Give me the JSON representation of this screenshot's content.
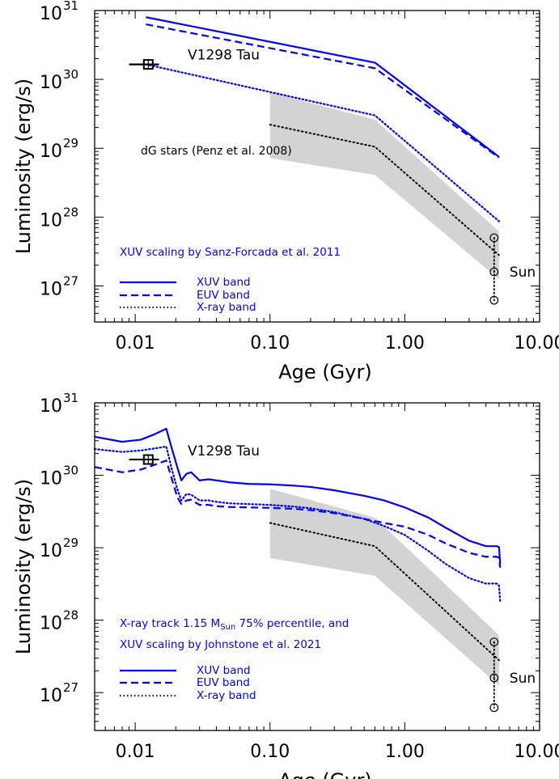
{
  "chart_data": [
    {
      "type": "line",
      "xlabel": "Age (Gyr)",
      "ylabel": "Luminosity (erg/s)",
      "xscale": "log",
      "yscale": "log",
      "xlim": [
        0.005,
        10.0
      ],
      "ylim": [
        3e+26,
        1e+31
      ],
      "xticks": [
        "0.01",
        "0.10",
        "1.00",
        "10.00"
      ],
      "xtick_values": [
        0.01,
        0.1,
        1.0,
        10.0
      ],
      "ytick_values": [
        1e+27,
        1e+28,
        1e+29,
        1e+30,
        1e+31
      ],
      "ytick_exponents": [
        "27",
        "28",
        "29",
        "30",
        "31"
      ],
      "ytick_base": "10",
      "annotations": {
        "scaling": "XUV scaling by Sanz-Forcada et al. 2011",
        "dg_stars": "dG stars (Penz et al. 2008)",
        "star": "V1298 Tau",
        "sun": "Sun"
      },
      "legend": [
        "XUV band",
        "EUV band",
        "X-ray band"
      ],
      "series": [
        {
          "name": "XUV band",
          "style": "solid",
          "color": "#0000ff",
          "x": [
            0.012,
            0.6,
            5.0
          ],
          "y": [
            8e+30,
            1.75e+30,
            7.5e+28
          ]
        },
        {
          "name": "EUV band",
          "style": "dashed",
          "color": "#0000ff",
          "x": [
            0.012,
            0.6,
            5.0
          ],
          "y": [
            6.3e+30,
            1.45e+30,
            7.3e+28
          ]
        },
        {
          "name": "X-ray band",
          "style": "dotted",
          "color": "#0000ff",
          "x": [
            0.012,
            0.6,
            5.0
          ],
          "y": [
            1.65e+30,
            3e+29,
            8.7e+27
          ]
        }
      ],
      "dg_stars": {
        "median": {
          "x": [
            0.1,
            0.6,
            5.0
          ],
          "y": [
            2.2e+29,
            1.05e+29,
            2.8e+27
          ]
        },
        "band": {
          "x": [
            0.1,
            0.6,
            5.0
          ],
          "upper": [
            6.5e+29,
            2.6e+29,
            6.2e+27
          ],
          "lower": [
            7.2e+28,
            4.1e+28,
            1.25e+27
          ]
        },
        "band_color": "#d3d3d3"
      },
      "v1298": {
        "x": 0.0125,
        "y": 1.65e+30,
        "x_err": [
          0.009,
          0.015
        ]
      },
      "sun": {
        "x": 4.6,
        "points": [
          5e+27,
          1.6e+27,
          6.2e+26
        ]
      }
    },
    {
      "type": "line",
      "xlabel": "Age (Gyr)",
      "ylabel": "Luminosity (erg/s)",
      "xscale": "log",
      "yscale": "log",
      "xlim": [
        0.005,
        10.0
      ],
      "ylim": [
        3e+26,
        1e+31
      ],
      "xticks": [
        "0.01",
        "0.10",
        "1.00",
        "10.00"
      ],
      "xtick_values": [
        0.01,
        0.1,
        1.0,
        10.0
      ],
      "ytick_values": [
        1e+27,
        1e+28,
        1e+29,
        1e+30,
        1e+31
      ],
      "ytick_exponents": [
        "27",
        "28",
        "29",
        "30",
        "31"
      ],
      "ytick_base": "10",
      "annotations": {
        "scaling_line1_pre": "X-ray track 1.15 M",
        "scaling_line1_sub": "Sun",
        "scaling_line1_post": " 75% percentile, and",
        "scaling_line2": "XUV scaling by Johnstone et al. 2021",
        "star": "V1298 Tau",
        "sun": "Sun"
      },
      "legend": [
        "XUV band",
        "EUV band",
        "X-ray band"
      ],
      "series": [
        {
          "name": "XUV band",
          "style": "solid",
          "color": "#0000ff",
          "x": [
            0.005,
            0.008,
            0.011,
            0.014,
            0.017,
            0.0185,
            0.0205,
            0.022,
            0.024,
            0.026,
            0.03,
            0.035,
            0.04,
            0.05,
            0.07,
            0.1,
            0.15,
            0.2,
            0.3,
            0.5,
            0.7,
            1.0,
            1.5,
            2.0,
            3.0,
            4.0,
            4.8,
            5.0,
            5.1
          ],
          "y": [
            3.4e+30,
            2.9e+30,
            3.1e+30,
            3.7e+30,
            4.4e+30,
            2.5e+30,
            1.3e+30,
            8.5e+29,
            1.05e+30,
            1.1e+30,
            8.5e+29,
            8.8e+29,
            8.5e+29,
            8e+29,
            7.6e+29,
            7.5e+29,
            7.2e+29,
            6.9e+29,
            6.2e+29,
            5.2e+29,
            4.5e+29,
            3.6e+29,
            2.6e+29,
            1.9e+29,
            1.25e+29,
            1.05e+29,
            1.05e+29,
            1.02e+29,
            6e+28
          ]
        },
        {
          "name": "EUV band",
          "style": "dashed",
          "color": "#0000ff",
          "x": [
            0.005,
            0.008,
            0.011,
            0.014,
            0.017,
            0.0185,
            0.0205,
            0.022,
            0.024,
            0.026,
            0.03,
            0.035,
            0.04,
            0.05,
            0.07,
            0.1,
            0.15,
            0.2,
            0.3,
            0.5,
            0.7,
            1.0,
            1.5,
            2.0,
            3.0,
            4.0,
            4.8,
            5.0,
            5.1
          ],
          "y": [
            1.3e+30,
            1.1e+30,
            1.2e+30,
            1.4e+30,
            1.6e+30,
            9.5e+29,
            5e+29,
            4e+29,
            4.5e+29,
            4.6e+29,
            3.9e+29,
            3.9e+29,
            3.75e+29,
            3.65e+29,
            3.6e+29,
            3.55e+29,
            3.45e+29,
            3.3e+29,
            3e+29,
            2.5e+29,
            2.2e+29,
            1.95e+29,
            1.5e+29,
            1.15e+29,
            8.5e+28,
            7.5e+28,
            7.5e+28,
            7.3e+28,
            5.3e+28
          ]
        },
        {
          "name": "X-ray band",
          "style": "dotted",
          "color": "#0000ff",
          "x": [
            0.005,
            0.008,
            0.011,
            0.014,
            0.017,
            0.0185,
            0.0205,
            0.022,
            0.024,
            0.026,
            0.03,
            0.035,
            0.04,
            0.05,
            0.07,
            0.1,
            0.15,
            0.2,
            0.3,
            0.5,
            0.7,
            1.0,
            1.5,
            2.0,
            3.0,
            4.0,
            4.8,
            5.0,
            5.1
          ],
          "y": [
            2.3e+30,
            2.1e+30,
            2.2e+30,
            2.35e+30,
            2.5e+30,
            1.3e+30,
            6.5e+29,
            4.5e+29,
            5.5e+29,
            5.4e+29,
            4.5e+29,
            4.5e+29,
            4.3e+29,
            4.1e+29,
            4e+29,
            3.9e+29,
            3.7e+29,
            3.5e+29,
            3.1e+29,
            2.5e+29,
            2e+29,
            1.5e+29,
            9e+28,
            6e+28,
            3.8e+28,
            3.2e+28,
            3.2e+28,
            3e+28,
            1.8e+28
          ]
        }
      ],
      "dg_stars": {
        "median": {
          "x": [
            0.1,
            0.6,
            5.0
          ],
          "y": [
            2.2e+29,
            1.05e+29,
            2.8e+27
          ]
        },
        "band": {
          "x": [
            0.1,
            0.6,
            5.0
          ],
          "upper": [
            6.5e+29,
            2.6e+29,
            6.2e+27
          ],
          "lower": [
            7.2e+28,
            4.1e+28,
            1.25e+27
          ]
        },
        "band_color": "#d3d3d3"
      },
      "v1298": {
        "x": 0.0125,
        "y": 1.65e+30,
        "x_err": [
          0.009,
          0.015
        ]
      },
      "sun": {
        "x": 4.6,
        "points": [
          5e+27,
          1.6e+27,
          6.2e+26
        ]
      }
    }
  ]
}
